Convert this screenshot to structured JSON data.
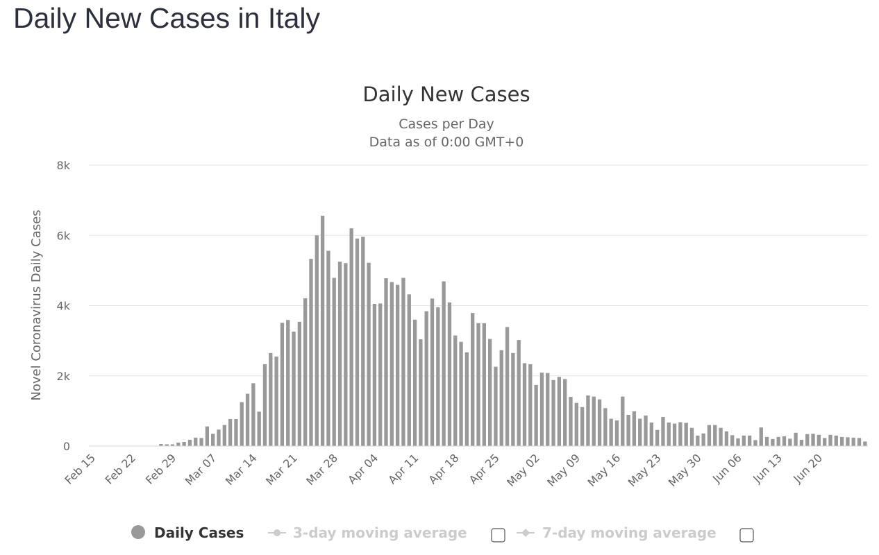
{
  "page": {
    "title": "Daily New Cases in Italy"
  },
  "chart_data": {
    "type": "bar",
    "title": "Daily New Cases",
    "subtitle": [
      "Cases per Day",
      "Data as of 0:00 GMT+0"
    ],
    "ylabel": "Novel Coronavirus Daily Cases",
    "xlabel": "",
    "ylim": [
      0,
      8000
    ],
    "y_ticks": [
      "0",
      "2k",
      "4k",
      "6k",
      "8k"
    ],
    "x_tick_labels": [
      "Feb 15",
      "Feb 22",
      "Feb 29",
      "Mar 07",
      "Mar 14",
      "Mar 21",
      "Mar 28",
      "Apr 04",
      "Apr 11",
      "Apr 18",
      "Apr 25",
      "May 02",
      "May 09",
      "May 16",
      "May 23",
      "May 30",
      "Jun 06",
      "Jun 13",
      "Jun 20"
    ],
    "x_start": "Feb 15",
    "grid": true,
    "bar_color": "#999999",
    "series": [
      {
        "name": "Daily Cases",
        "values": [
          0,
          0,
          0,
          0,
          0,
          0,
          0,
          0,
          0,
          0,
          0,
          0,
          60,
          50,
          50,
          100,
          120,
          180,
          240,
          230,
          560,
          350,
          470,
          600,
          770,
          770,
          1250,
          1490,
          1790,
          980,
          2330,
          2650,
          2550,
          3510,
          3590,
          3260,
          3540,
          4210,
          5330,
          6000,
          6560,
          5560,
          4790,
          5250,
          5210,
          6200,
          5910,
          5960,
          5220,
          4050,
          4060,
          4780,
          4670,
          4590,
          4790,
          4320,
          3600,
          3040,
          3840,
          4200,
          3950,
          4690,
          4090,
          3150,
          2970,
          2670,
          3790,
          3500,
          3500,
          3050,
          2260,
          2730,
          3390,
          2650,
          3020,
          2360,
          2330,
          1740,
          2090,
          2080,
          1880,
          1970,
          1910,
          1400,
          1230,
          1110,
          1440,
          1410,
          1330,
          1080,
          780,
          730,
          1410,
          890,
          990,
          780,
          870,
          670,
          460,
          830,
          670,
          640,
          680,
          660,
          520,
          300,
          360,
          600,
          600,
          520,
          420,
          310,
          220,
          300,
          300,
          170,
          530,
          260,
          200,
          260,
          280,
          210,
          380,
          180,
          340,
          350,
          320,
          230,
          320,
          300,
          260,
          250,
          240,
          230,
          130
        ]
      },
      {
        "name": "3-day moving average",
        "visible": false
      },
      {
        "name": "7-day moving average",
        "visible": false
      }
    ]
  }
}
